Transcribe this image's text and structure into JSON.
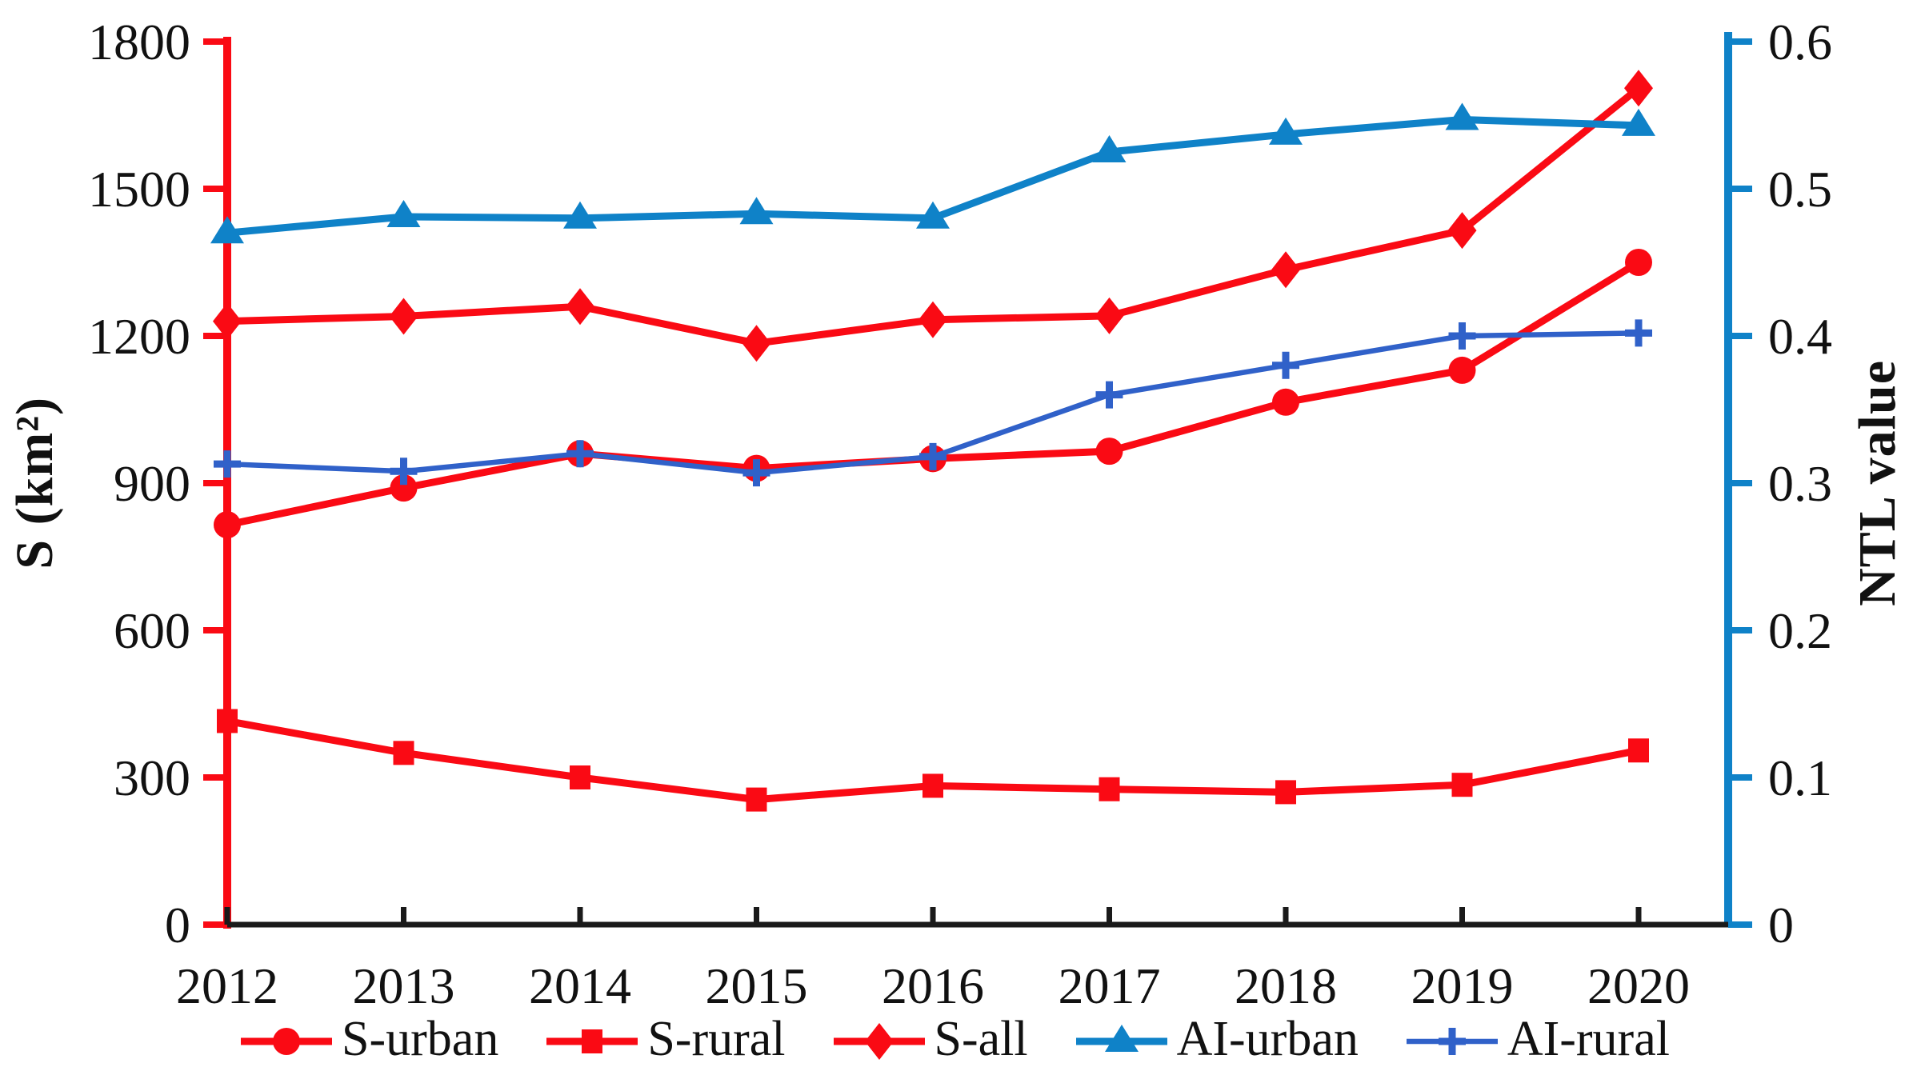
{
  "chart_data": {
    "type": "line",
    "title": "",
    "categories": [
      "2012",
      "2013",
      "2014",
      "2015",
      "2016",
      "2017",
      "2018",
      "2019",
      "2020"
    ],
    "left_axis": {
      "label": "S (km²)",
      "min": 0,
      "max": 1800,
      "tick_step": 300,
      "tick_labels": [
        "0",
        "300",
        "600",
        "900",
        "1200",
        "1500",
        "1800"
      ],
      "color": "#fa0a14"
    },
    "right_axis": {
      "label": "NTL value",
      "min": 0,
      "max": 0.6,
      "tick_step": 0.1,
      "tick_labels": [
        "0",
        "0.1",
        "0.2",
        "0.3",
        "0.4",
        "0.5",
        "0.6"
      ],
      "color": "#0f82c8"
    },
    "grid": false,
    "legend_position": "bottom",
    "series": [
      {
        "name": "S-urban",
        "axis": "left",
        "marker": "circle",
        "color": "#fa0a14",
        "line_width": 9,
        "values": [
          815,
          890,
          960,
          930,
          950,
          965,
          1065,
          1130,
          1350
        ]
      },
      {
        "name": "S-rural",
        "axis": "left",
        "marker": "square",
        "color": "#fa0a14",
        "line_width": 9,
        "values": [
          415,
          350,
          300,
          255,
          283,
          276,
          270,
          285,
          355
        ]
      },
      {
        "name": "S-all",
        "axis": "left",
        "marker": "diamond",
        "color": "#fa0a14",
        "line_width": 9,
        "values": [
          1230,
          1240,
          1260,
          1185,
          1233,
          1241,
          1335,
          1415,
          1705
        ]
      },
      {
        "name": "AI-urban",
        "axis": "right",
        "marker": "triangle",
        "color": "#0f82c8",
        "line_width": 9,
        "values": [
          0.47,
          0.481,
          0.48,
          0.483,
          0.48,
          0.525,
          0.537,
          0.547,
          0.543
        ]
      },
      {
        "name": "AI-rural",
        "axis": "right",
        "marker": "plus",
        "color": "#3061c9",
        "line_width": 6.5,
        "values": [
          0.313,
          0.308,
          0.32,
          0.307,
          0.318,
          0.36,
          0.38,
          0.4,
          0.402
        ]
      }
    ]
  }
}
